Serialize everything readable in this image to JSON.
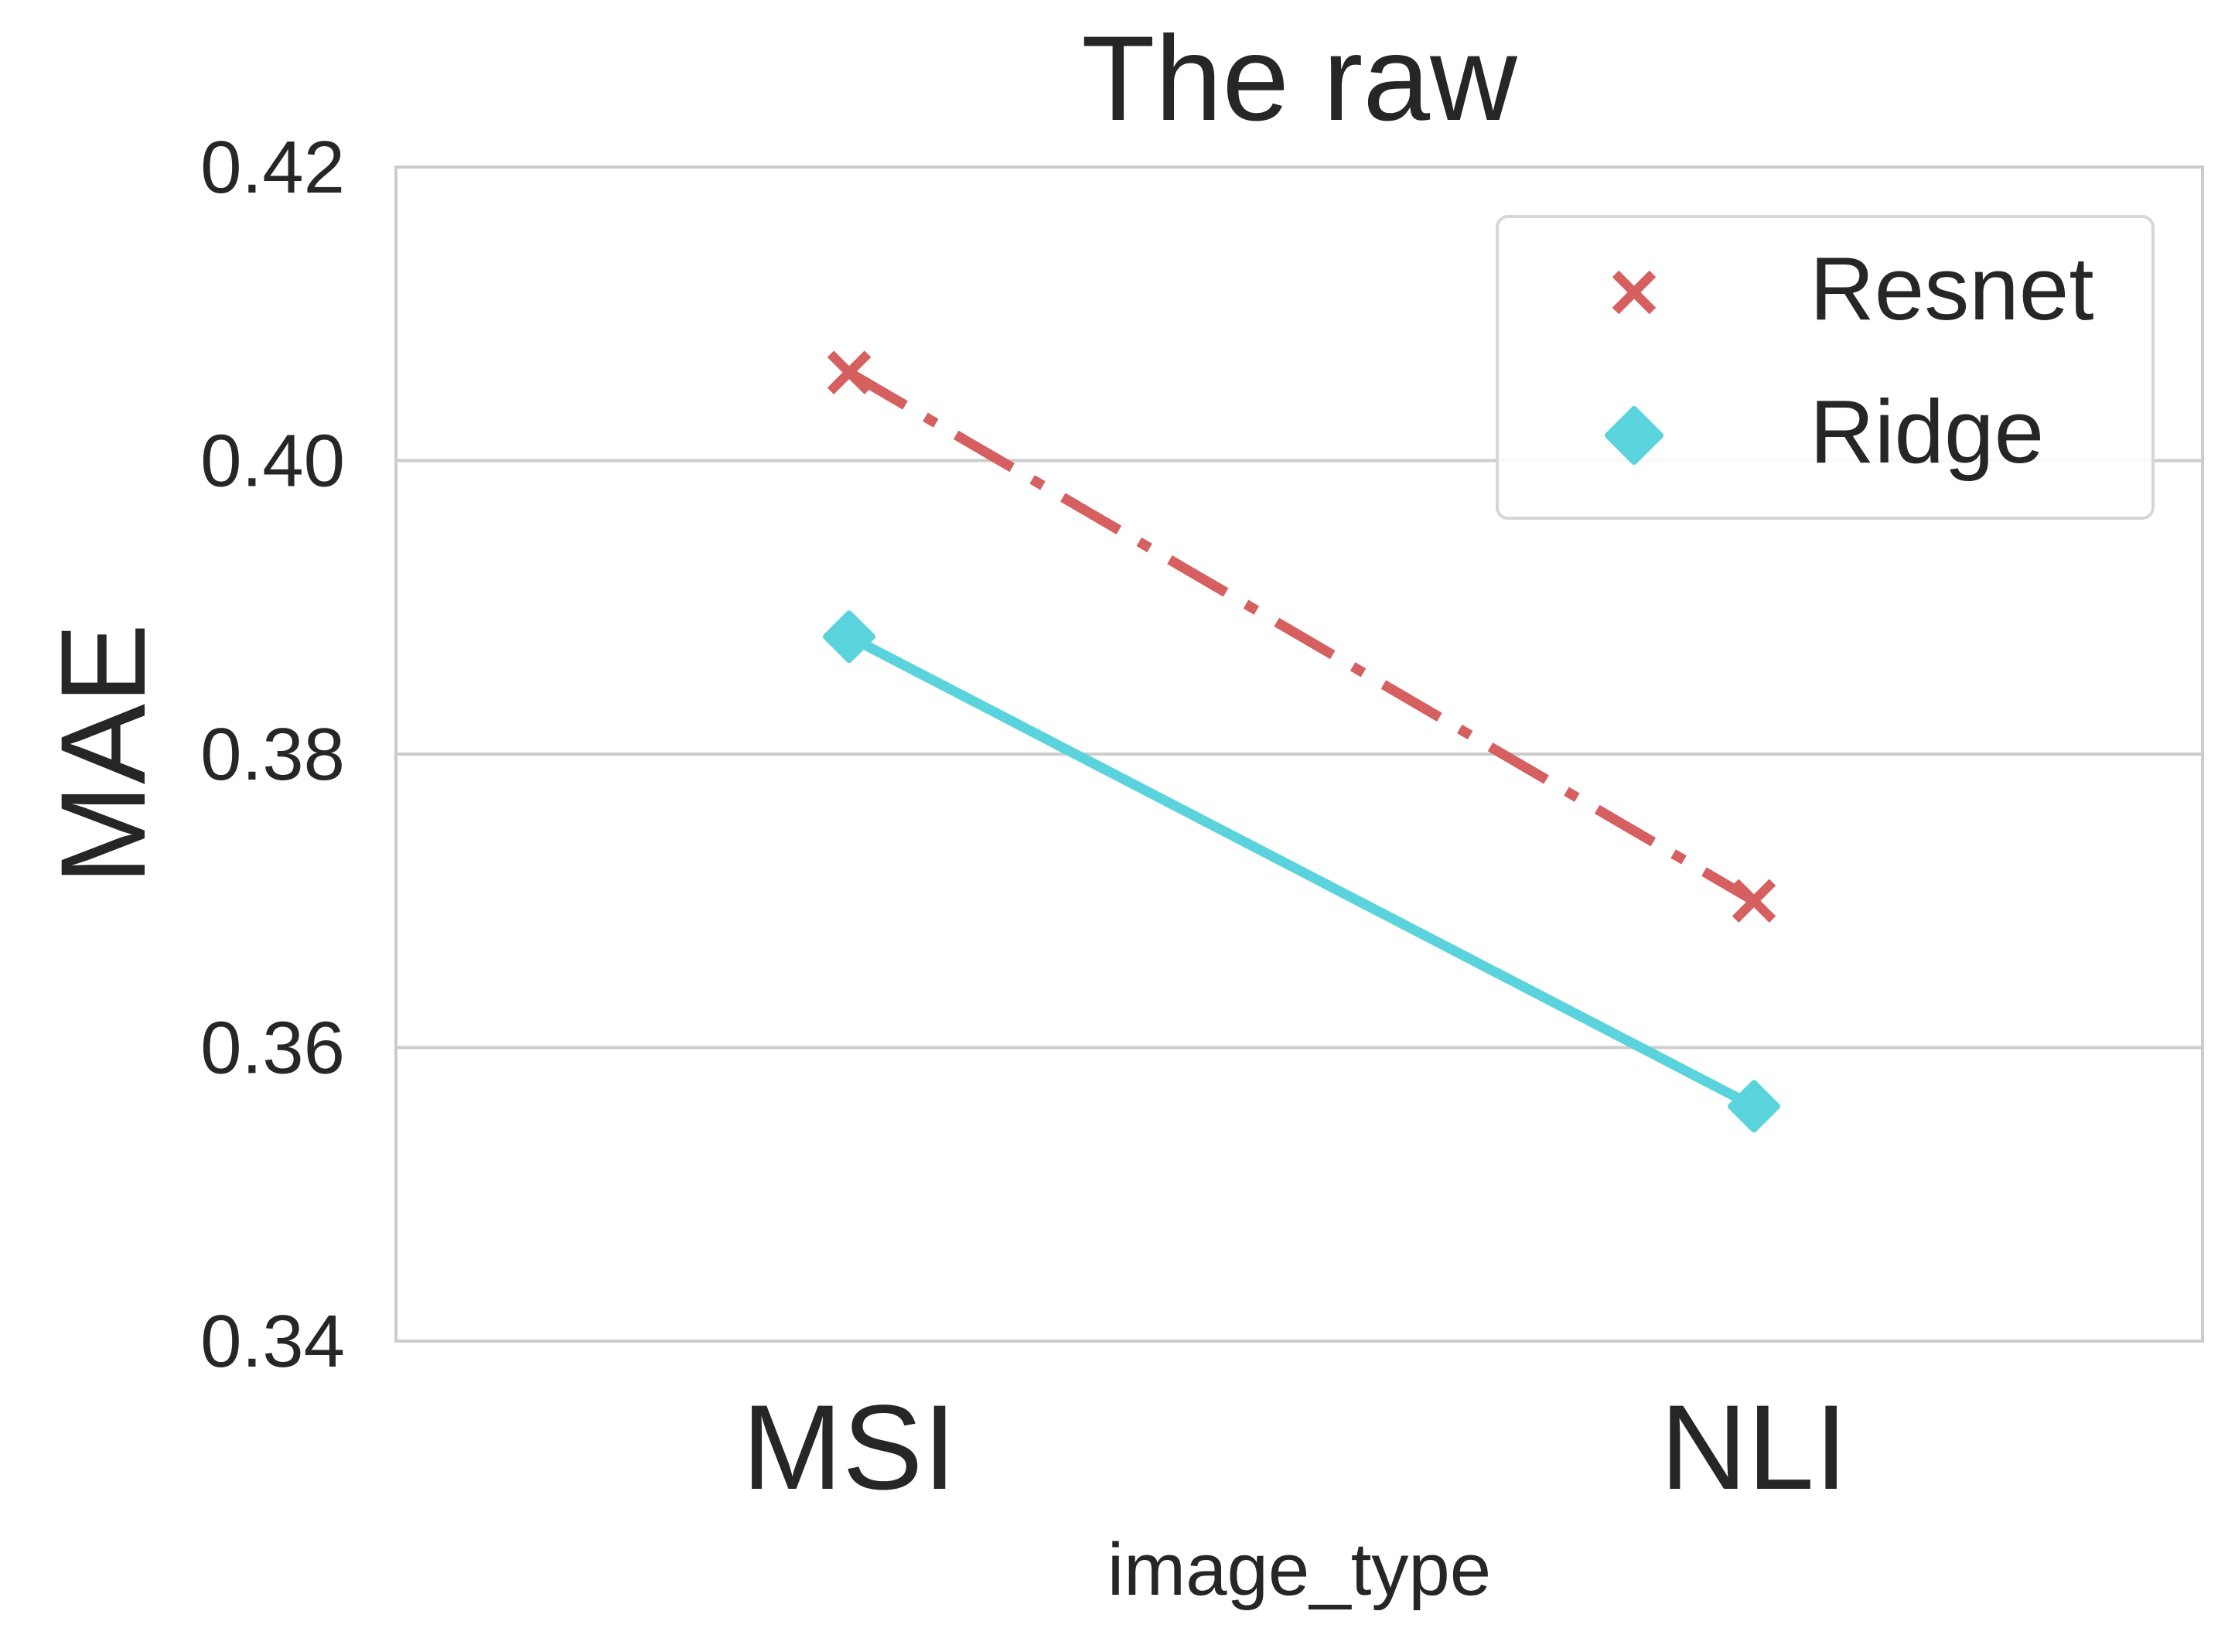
{
  "chart_data": {
    "type": "line",
    "title": "The raw",
    "xlabel": "image_type",
    "ylabel": "MAE",
    "categories": [
      "MSI",
      "NLI"
    ],
    "ylim": [
      0.34,
      0.42
    ],
    "yticks": [
      0.34,
      0.36,
      0.38,
      0.4,
      0.42
    ],
    "ytick_labels": [
      "0.34",
      "0.36",
      "0.38",
      "0.40",
      "0.42"
    ],
    "grid": "horizontal",
    "legend_position": "top-right",
    "series": [
      {
        "name": "Resnet",
        "values": [
          0.406,
          0.37
        ],
        "color": "#d65f5f",
        "marker": "x",
        "line_style": "dash-dot"
      },
      {
        "name": "Ridge",
        "values": [
          0.388,
          0.356
        ],
        "color": "#5bd3dc",
        "marker": "diamond",
        "line_style": "solid"
      }
    ],
    "colors": {
      "axis_frame": "#cccccc",
      "grid": "#cccccc",
      "text": "#262626"
    }
  }
}
